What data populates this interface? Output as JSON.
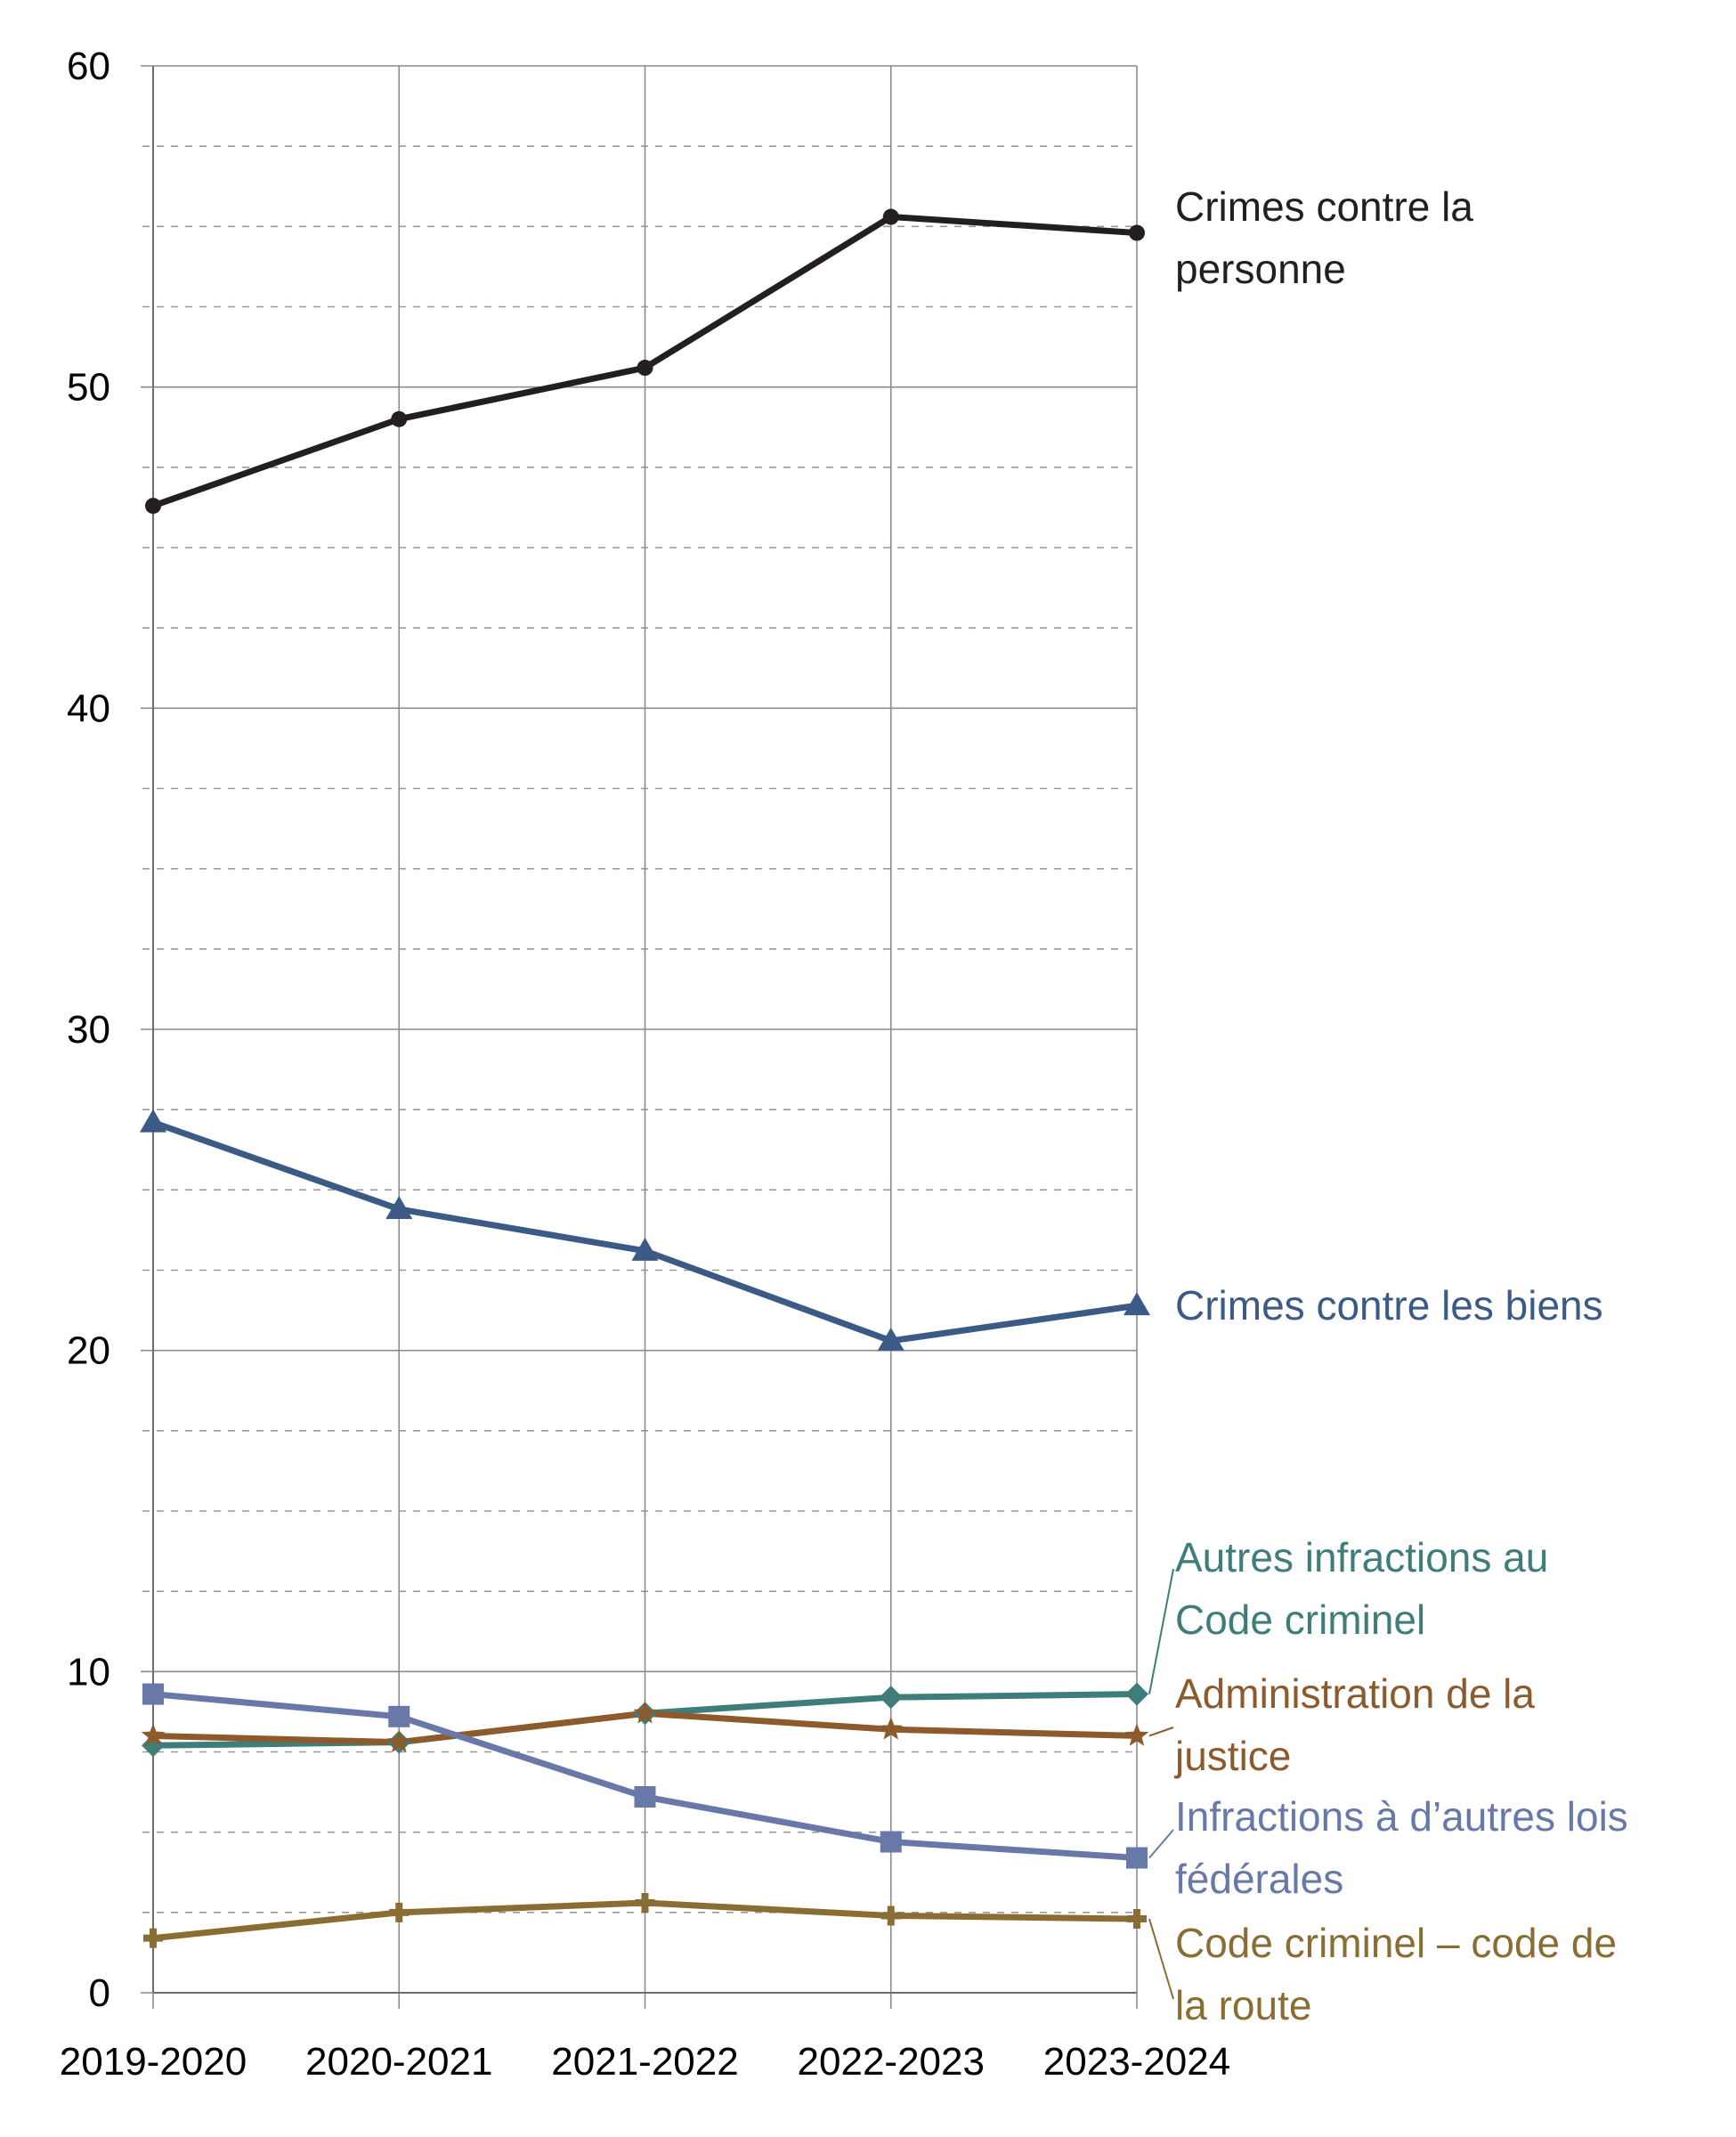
{
  "chart_data": {
    "type": "line",
    "categories": [
      "2019-2020",
      "2020-2021",
      "2021-2022",
      "2022-2023",
      "2023-2024"
    ],
    "ylim": [
      0,
      60
    ],
    "yticks": [
      "0",
      "10",
      "20",
      "30",
      "40",
      "50",
      "60"
    ],
    "grid": {
      "major": true,
      "minor_dashed": true,
      "vertical": true
    },
    "series": [
      {
        "key": "personne",
        "name": "Crimes contre la personne",
        "label_lines": [
          "Crimes contre la",
          "personne"
        ],
        "color": "#231f20",
        "marker": "circle",
        "values": [
          46.3,
          49.0,
          50.6,
          55.3,
          54.8
        ]
      },
      {
        "key": "biens",
        "name": "Crimes contre les biens",
        "label_lines": [
          "Crimes contre les biens"
        ],
        "color": "#3b5a85",
        "marker": "triangle",
        "values": [
          27.1,
          24.4,
          23.1,
          20.3,
          21.4
        ]
      },
      {
        "key": "autres_cc",
        "name": "Autres infractions au Code criminel",
        "label_lines": [
          "Autres infractions au",
          "Code criminel"
        ],
        "color": "#3f7d7a",
        "marker": "diamond",
        "values": [
          7.7,
          7.8,
          8.7,
          9.2,
          9.3
        ]
      },
      {
        "key": "justice",
        "name": "Administration de la justice",
        "label_lines": [
          "Administration de la",
          "justice"
        ],
        "color": "#8c5a2b",
        "marker": "star",
        "values": [
          8.0,
          7.8,
          8.7,
          8.2,
          8.0
        ]
      },
      {
        "key": "lois_federales",
        "name": "Infractions à d’autres lois fédérales",
        "label_lines": [
          "Infractions à d’autres lois",
          "fédérales"
        ],
        "color": "#6878a8",
        "marker": "square",
        "values": [
          9.3,
          8.6,
          6.1,
          4.7,
          4.2
        ]
      },
      {
        "key": "code_route",
        "name": "Code criminel – code de la route",
        "label_lines": [
          "Code criminel – code de",
          "la route"
        ],
        "color": "#8a6d33",
        "marker": "cross",
        "values": [
          1.7,
          2.5,
          2.8,
          2.4,
          2.3
        ]
      }
    ]
  }
}
